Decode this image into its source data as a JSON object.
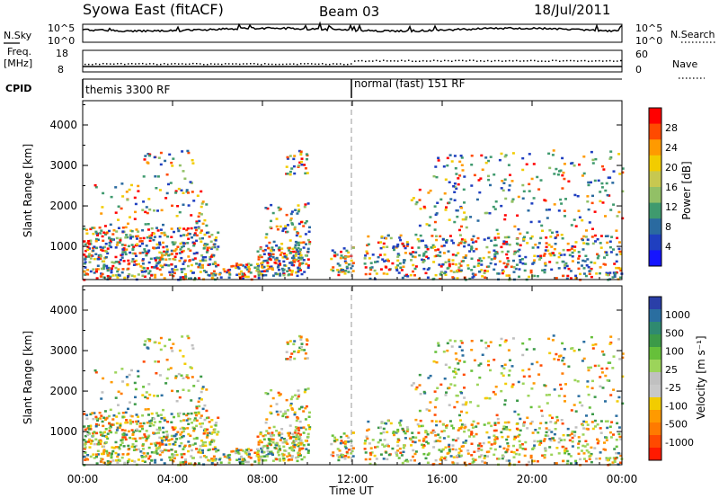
{
  "header": {
    "title": "Syowa East (fitACF)",
    "beam": "Beam 03",
    "date": "18/Jul/2011"
  },
  "noise_panel": {
    "left_label": "N.Sky",
    "left_ticks": [
      "10^5",
      "10^0"
    ],
    "right_label": "N.Search",
    "right_ticks": [
      "10^5",
      "10^0"
    ]
  },
  "freq_panel": {
    "left_label_1": "Freq.",
    "left_label_2": "[MHz]",
    "left_ticks": [
      "18",
      "8"
    ],
    "right_label": "Nave",
    "right_ticks": [
      "60",
      "0"
    ]
  },
  "cpid_panel": {
    "label": "CPID",
    "modes": [
      {
        "name": "themis 3300 RF",
        "start_hour": 0
      },
      {
        "name": "normal (fast) 151 RF",
        "start_hour": 12
      }
    ]
  },
  "time_axis": {
    "title": "Time UT",
    "ticks": [
      "00:00",
      "04:00",
      "08:00",
      "12:00",
      "16:00",
      "20:00",
      "00:00"
    ]
  },
  "chart_data": [
    {
      "type": "heatmap",
      "name": "power",
      "ylabel": "Slant Range [km]",
      "y_ticks": [
        "1000",
        "2000",
        "3000",
        "4000"
      ],
      "xlim_hours": [
        0,
        24
      ],
      "ylim_km": [
        180,
        4600
      ],
      "colorbar": {
        "title": "Power [dB]",
        "labels": [
          "28",
          "24",
          "20",
          "16",
          "12",
          "8",
          "4"
        ],
        "colors": [
          "#ff0000",
          "#ff4a00",
          "#ff9a00",
          "#f2cc00",
          "#c7c850",
          "#92c066",
          "#3f9a6e",
          "#2a6aa0",
          "#1f3fc0",
          "#1515ff"
        ]
      }
    },
    {
      "type": "heatmap",
      "name": "velocity",
      "ylabel": "Slant Range [km]",
      "y_ticks": [
        "1000",
        "2000",
        "3000",
        "4000"
      ],
      "xlim_hours": [
        0,
        24
      ],
      "ylim_km": [
        180,
        4600
      ],
      "colorbar": {
        "title": "Velocity [m s⁻¹]",
        "labels": [
          "1000",
          "500",
          "100",
          "25",
          "-25",
          "-100",
          "-500",
          "-1000"
        ],
        "colors": [
          "#2a3fa8",
          "#2a6ea0",
          "#2f8a70",
          "#3c9a48",
          "#66c03a",
          "#9cd45a",
          "#c0c0c0",
          "#c8c8c8",
          "#f2cc00",
          "#ff9a00",
          "#ff7a00",
          "#ff4a00",
          "#ff1a00"
        ]
      }
    }
  ]
}
